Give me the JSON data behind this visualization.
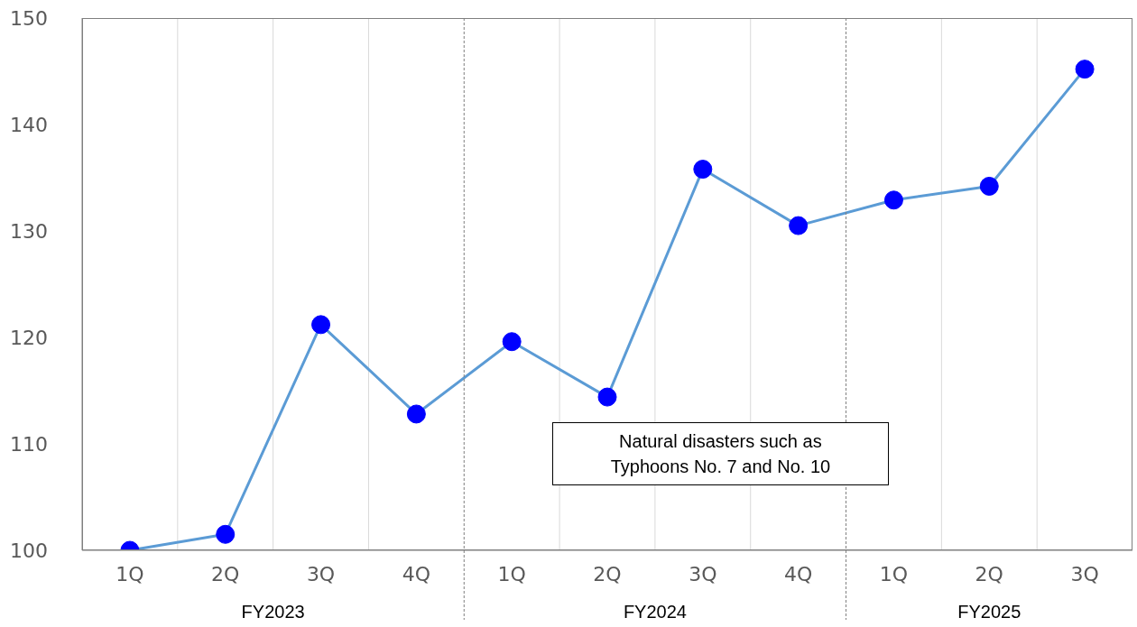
{
  "chart_data": {
    "type": "line",
    "categories": [
      "1Q",
      "2Q",
      "3Q",
      "4Q",
      "1Q",
      "2Q",
      "3Q",
      "4Q",
      "1Q",
      "2Q",
      "3Q"
    ],
    "series": [
      {
        "color": "#5b9bd5",
        "values": [
          100,
          101.5,
          121.2,
          112.8,
          119.6,
          114.4,
          135.8,
          130.5,
          132.9,
          134.2,
          145.2
        ]
      }
    ],
    "marker": "circle",
    "line_style": "solid",
    "ylim": [
      100,
      150
    ],
    "yticks": [
      100,
      110,
      120,
      130,
      140,
      150
    ],
    "grid": "x",
    "annotations": [
      "FY2023",
      "FY2024",
      "FY2025",
      "Natural disasters such as\nTyphoons No. 7 and No. 10"
    ]
  }
}
